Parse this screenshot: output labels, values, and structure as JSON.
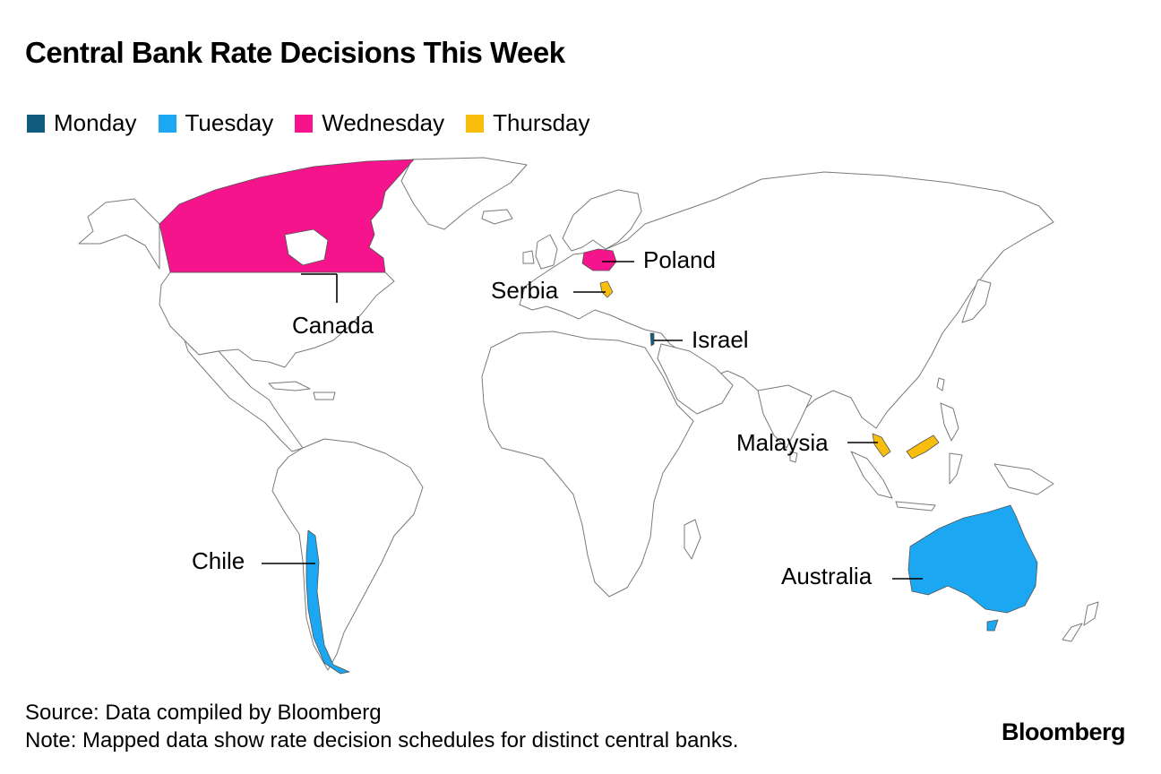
{
  "title": "Central Bank Rate Decisions This Week",
  "legend": [
    {
      "label": "Monday",
      "color": "#0f5c7f"
    },
    {
      "label": "Tuesday",
      "color": "#1ba7f2"
    },
    {
      "label": "Wednesday",
      "color": "#f5148c"
    },
    {
      "label": "Thursday",
      "color": "#f9bd0c"
    }
  ],
  "countries": [
    {
      "name": "Canada",
      "day": "Wednesday"
    },
    {
      "name": "Poland",
      "day": "Wednesday"
    },
    {
      "name": "Serbia",
      "day": "Thursday"
    },
    {
      "name": "Israel",
      "day": "Monday"
    },
    {
      "name": "Malaysia",
      "day": "Thursday"
    },
    {
      "name": "Chile",
      "day": "Tuesday"
    },
    {
      "name": "Australia",
      "day": "Tuesday"
    }
  ],
  "footer": {
    "source": "Source: Data compiled by Bloomberg",
    "note": "Note: Mapped data show rate decision schedules for distinct central banks."
  },
  "brand": "Bloomberg"
}
